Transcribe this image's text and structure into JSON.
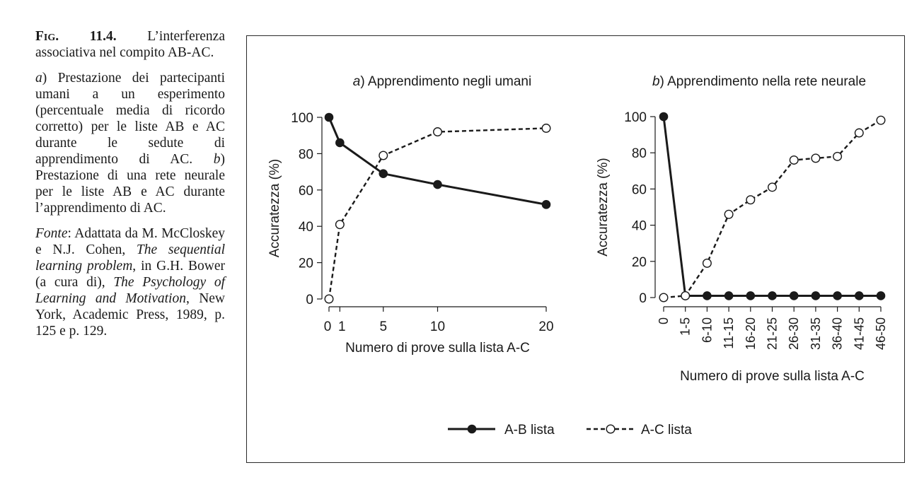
{
  "caption": {
    "fig_label": "Fig. 11.4.",
    "fig_title": "L’interferenza associativa nel compito AB-AC.",
    "panel_a_letter": "a",
    "panel_a_text": "Prestazione dei partecipanti umani a un esperimento (percentuale media di ricordo corretto) per le liste AB e AC durante le sedute di apprendimento di AC.",
    "panel_b_letter": "b",
    "panel_b_text": "Prestazione di una rete neurale per le liste AB e AC durante l’apprendimento di AC.",
    "source_label": "Fonte",
    "source_pre": "Adattata da M. McCloskey e N.J. Cohen,",
    "source_title1": "The sequential learning problem",
    "source_mid": "in G.H. Bower (a cura di),",
    "source_title2": "The Psychology of Learning and Motivation",
    "source_post": "New York, Academic Press, 1989, p. 125 e p. 129."
  },
  "chart_data": [
    {
      "type": "line",
      "title_letter": "a",
      "title": "Apprendimento negli umani",
      "xlabel": "Numero di prove sulla lista A-C",
      "ylabel": "Accuratezza (%)",
      "x_scale": "linear",
      "xlim": [
        0,
        20
      ],
      "ylim": [
        0,
        100
      ],
      "xticks": [
        0,
        1,
        5,
        10,
        20
      ],
      "xtick_labels": [
        "0",
        "1",
        "5",
        "10",
        "20"
      ],
      "yticks": [
        0,
        20,
        40,
        60,
        80,
        100
      ],
      "grid": false,
      "x": [
        0,
        1,
        5,
        10,
        20
      ],
      "series": [
        {
          "name": "A-B lista",
          "style": "solid-filled",
          "values": [
            100,
            86,
            69,
            63,
            52
          ]
        },
        {
          "name": "A-C lista",
          "style": "dashed-open",
          "values": [
            0,
            41,
            79,
            92,
            94
          ]
        }
      ]
    },
    {
      "type": "line",
      "title_letter": "b",
      "title": "Apprendimento nella rete neurale",
      "xlabel": "Numero di prove sulla lista A-C",
      "ylabel": "Accuratezza (%)",
      "x_scale": "categorical",
      "categories": [
        "0",
        "1-5",
        "6-10",
        "11-15",
        "16-20",
        "21-25",
        "26-30",
        "31-35",
        "36-40",
        "41-45",
        "46-50"
      ],
      "ylim": [
        0,
        100
      ],
      "yticks": [
        0,
        20,
        40,
        60,
        80,
        100
      ],
      "grid": false,
      "series": [
        {
          "name": "A-B lista",
          "style": "solid-filled",
          "values": [
            100,
            1,
            1,
            1,
            1,
            1,
            1,
            1,
            1,
            1,
            1
          ]
        },
        {
          "name": "A-C lista",
          "style": "dashed-open",
          "values": [
            0,
            1,
            19,
            46,
            54,
            61,
            76,
            77,
            78,
            91,
            98
          ]
        }
      ]
    }
  ],
  "legend": {
    "placement": "bottom-center",
    "items": [
      {
        "label": "A-B lista",
        "style": "solid-filled"
      },
      {
        "label": "A-C lista",
        "style": "dashed-open"
      }
    ]
  },
  "colors": {
    "ink": "#1a1a1a",
    "frame": "#2a2a2a",
    "background": "#ffffff"
  }
}
